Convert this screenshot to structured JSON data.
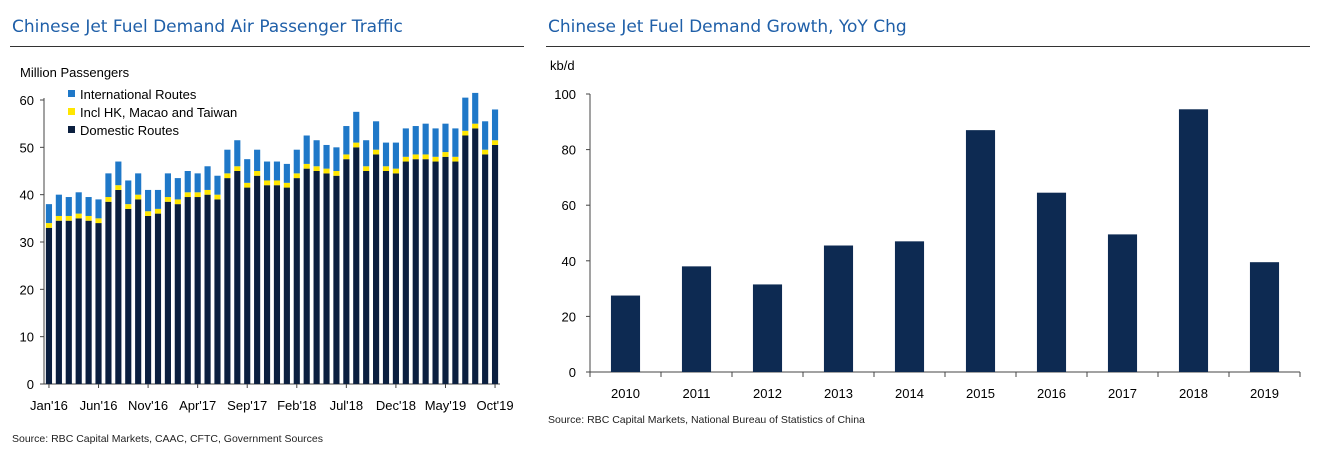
{
  "left_panel": {
    "title": "Chinese Jet Fuel Demand Air Passenger Traffic",
    "source": "Source: RBC Capital Markets, CAAC, CFTC, Government Sources"
  },
  "right_panel": {
    "title": "Chinese Jet Fuel Demand Growth, YoY Chg",
    "source": "Source: RBC Capital Markets, National Bureau of Statistics of China"
  },
  "colors": {
    "international": "#1f78c8",
    "hk_macao_taiwan": "#ffe600",
    "domestic": "#0b1f3f",
    "growth_bar": "#0d2a52",
    "title": "#1f5fa8"
  },
  "chart_data": [
    {
      "type": "bar",
      "stacked": true,
      "title": "Chinese Jet Fuel Demand Air Passenger Traffic",
      "ylabel": "Million Passengers",
      "ylim": [
        0,
        60
      ],
      "yticks": [
        0,
        10,
        20,
        30,
        40,
        50,
        60
      ],
      "legend_position": "top-left",
      "categories": [
        "Jan'16",
        "Feb'16",
        "Mar'16",
        "Apr'16",
        "May'16",
        "Jun'16",
        "Jul'16",
        "Aug'16",
        "Sep'16",
        "Oct'16",
        "Nov'16",
        "Dec'16",
        "Jan'17",
        "Feb'17",
        "Mar'17",
        "Apr'17",
        "May'17",
        "Jun'17",
        "Jul'17",
        "Aug'17",
        "Sep'17",
        "Oct'17",
        "Nov'17",
        "Dec'17",
        "Jan'18",
        "Feb'18",
        "Mar'18",
        "Apr'18",
        "May'18",
        "Jun'18",
        "Jul'18",
        "Aug'18",
        "Sep'18",
        "Oct'18",
        "Nov'18",
        "Dec'18",
        "Jan'19",
        "Feb'19",
        "Mar'19",
        "Apr'19",
        "May'19",
        "Jun'19",
        "Jul'19",
        "Aug'19",
        "Sep'19",
        "Oct'19"
      ],
      "tick_labels": [
        "Jan'16",
        "Jun'16",
        "Nov'16",
        "Apr'17",
        "Sep'17",
        "Feb'18",
        "Jul'18",
        "Dec'18",
        "May'19",
        "Oct'19"
      ],
      "series": [
        {
          "name": "Domestic Routes",
          "color": "#0b1f3f",
          "values": [
            33.0,
            34.5,
            34.5,
            35.0,
            34.5,
            34.0,
            38.5,
            41.0,
            37.0,
            39.0,
            35.5,
            36.0,
            38.5,
            38.0,
            39.5,
            39.5,
            40.0,
            39.0,
            43.5,
            45.0,
            41.5,
            44.0,
            42.0,
            42.0,
            41.5,
            43.5,
            45.5,
            45.0,
            44.5,
            44.0,
            47.5,
            50.0,
            45.0,
            48.5,
            45.0,
            44.5,
            47.0,
            47.5,
            47.5,
            47.0,
            48.0,
            47.0,
            52.5,
            54.0,
            48.5,
            50.5
          ]
        },
        {
          "name": "Incl HK, Macao and Taiwan",
          "color": "#ffe600",
          "values": [
            1.0,
            1.0,
            1.0,
            1.0,
            1.0,
            1.0,
            1.0,
            1.0,
            1.0,
            1.0,
            1.0,
            1.0,
            1.0,
            1.0,
            1.0,
            1.0,
            1.0,
            1.0,
            1.0,
            1.0,
            1.0,
            1.0,
            1.0,
            1.0,
            1.0,
            1.0,
            1.0,
            1.0,
            1.0,
            1.0,
            1.0,
            1.0,
            1.0,
            1.0,
            1.0,
            1.0,
            1.0,
            1.0,
            1.0,
            1.0,
            1.0,
            1.0,
            1.0,
            1.0,
            1.0,
            1.0
          ]
        },
        {
          "name": "International Routes",
          "color": "#1f78c8",
          "values": [
            4.0,
            4.5,
            4.0,
            4.5,
            4.0,
            4.0,
            5.0,
            5.0,
            5.0,
            4.5,
            4.5,
            4.0,
            5.0,
            4.5,
            4.5,
            4.0,
            5.0,
            4.0,
            5.0,
            5.5,
            5.0,
            4.5,
            4.0,
            4.0,
            4.0,
            5.0,
            6.0,
            5.5,
            5.0,
            5.0,
            6.0,
            6.5,
            5.5,
            6.0,
            5.0,
            5.5,
            6.0,
            6.0,
            6.5,
            6.0,
            6.0,
            6.0,
            7.0,
            6.5,
            6.0,
            6.5
          ]
        }
      ]
    },
    {
      "type": "bar",
      "title": "Chinese Jet Fuel Demand Growth, YoY Chg",
      "ylabel": "kb/d",
      "ylim": [
        0,
        100
      ],
      "yticks": [
        0,
        20,
        40,
        60,
        80,
        100
      ],
      "categories": [
        "2010",
        "2011",
        "2012",
        "2013",
        "2014",
        "2015",
        "2016",
        "2017",
        "2018",
        "2019"
      ],
      "values": [
        27.5,
        38,
        31.5,
        45.5,
        47,
        87,
        64.5,
        49.5,
        94.5,
        39.5
      ]
    }
  ]
}
